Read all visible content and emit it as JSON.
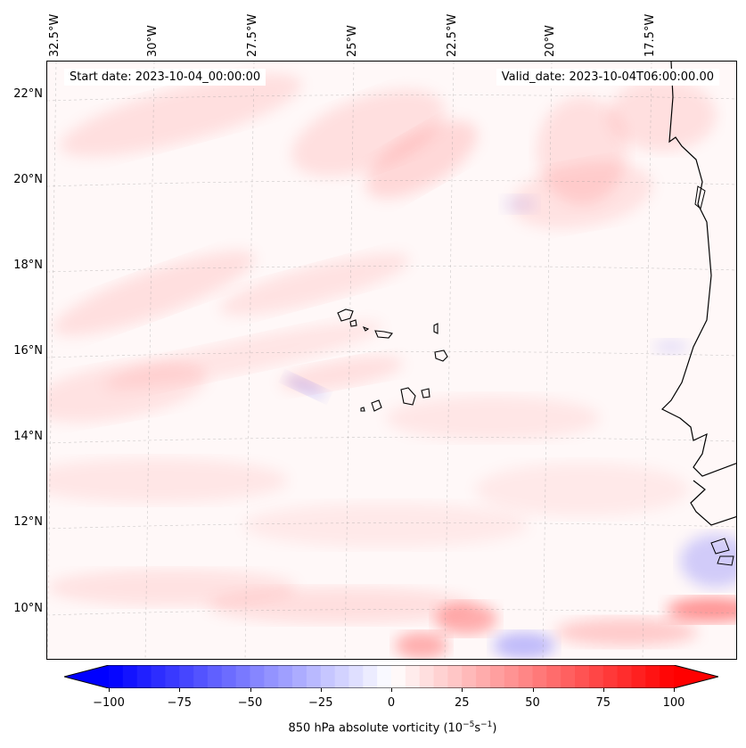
{
  "map": {
    "start_date_label": "Start date: 2023-10-04_00:00:00",
    "valid_date_label": "Valid_date: 2023-10-04T06:00:00.00",
    "lon_labels": [
      "32.5°W",
      "30°W",
      "27.5°W",
      "25°W",
      "22.5°W",
      "20°W",
      "17.5°W"
    ],
    "lat_labels": [
      "22°N",
      "20°N",
      "18°N",
      "16°N",
      "14°N",
      "12°N",
      "10°N"
    ],
    "field": "850 hPa absolute vorticity",
    "colors": {
      "positive": "#ff0000",
      "negative": "#0000ff",
      "zero": "#ffffff",
      "coastline": "#000000"
    }
  },
  "colorbar": {
    "ticks": [
      "−100",
      "−75",
      "−50",
      "−25",
      "0",
      "25",
      "50",
      "75",
      "100"
    ],
    "range": [
      -100,
      100
    ],
    "label_text": "850 hPa absolute vorticity (10",
    "label_exp1": "−5",
    "label_mid": "s",
    "label_exp2": "−1",
    "label_end": ")"
  }
}
